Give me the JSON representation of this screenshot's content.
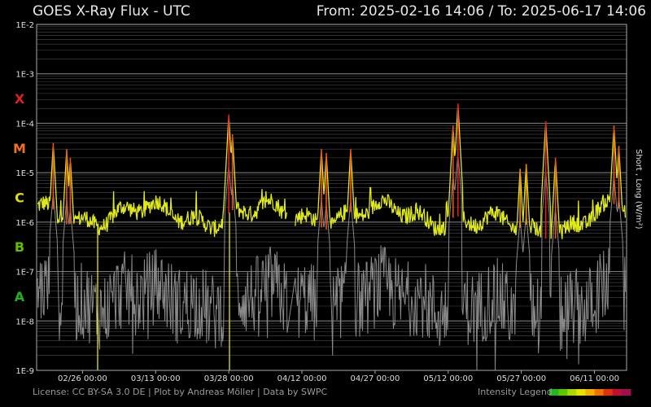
{
  "header": {
    "title": "GOES X-Ray Flux - UTC",
    "range": "From: 2025-02-16 14:06  /  To: 2025-06-17 14:06"
  },
  "chart_data": {
    "type": "line",
    "y_scale": "log",
    "ylim": [
      1e-09,
      0.01
    ],
    "y_ticks": [
      "1E-2",
      "1E-3",
      "1E-4",
      "1E-5",
      "1E-6",
      "1E-7",
      "1E-8",
      "1E-9"
    ],
    "x_range": [
      "2025-02-16 14:06",
      "2025-06-17 14:06"
    ],
    "x_ticks": [
      "02/26 00:00",
      "03/13 00:00",
      "03/28 00:00",
      "04/12 00:00",
      "04/27 00:00",
      "05/12 00:00",
      "05/27 00:00",
      "06/11 00:00"
    ],
    "flare_classes": [
      {
        "label": "X",
        "color": "#e02020"
      },
      {
        "label": "M",
        "color": "#f07020"
      },
      {
        "label": "C",
        "color": "#e0e000"
      },
      {
        "label": "B",
        "color": "#60c000"
      },
      {
        "label": "A",
        "color": "#20b020"
      }
    ],
    "right_axis_label": "Short , Long (W/m²)",
    "grid": true,
    "series": [
      {
        "name": "Long",
        "color": "#dfe81a",
        "gap": [
          "2025-04-09 00:00",
          "2025-04-10 12:00"
        ],
        "peaks": [
          {
            "x": "2025-02-20 00:00",
            "y": 4e-05
          },
          {
            "x": "2025-02-22 18:00",
            "y": 3e-05
          },
          {
            "x": "2025-02-23 12:00",
            "y": 2e-05
          },
          {
            "x": "2025-03-28 00:00",
            "y": 0.00015
          },
          {
            "x": "2025-03-28 18:00",
            "y": 6e-05
          },
          {
            "x": "2025-04-16 00:00",
            "y": 3e-05
          },
          {
            "x": "2025-04-17 00:00",
            "y": 2.5e-05
          },
          {
            "x": "2025-04-22 00:00",
            "y": 3e-05
          },
          {
            "x": "2025-05-14 00:00",
            "y": 0.00025
          },
          {
            "x": "2025-05-13 00:00",
            "y": 9e-05
          },
          {
            "x": "2025-05-26 18:00",
            "y": 1.2e-05
          },
          {
            "x": "2025-05-28 00:00",
            "y": 1.5e-05
          },
          {
            "x": "2025-06-01 00:00",
            "y": 0.00011
          },
          {
            "x": "2025-06-03 00:00",
            "y": 2e-05
          },
          {
            "x": "2025-06-15 00:00",
            "y": 9e-05
          },
          {
            "x": "2025-06-16 00:00",
            "y": 3.5e-05
          }
        ]
      },
      {
        "name": "Short",
        "color": "#8a8a8a"
      }
    ]
  },
  "footer": {
    "license": "License: CC BY-SA 3.0 DE | Plot by Andreas Möller | Data by SWPC",
    "legend_label": "Intensity Legend",
    "legend_colors": [
      "#22b822",
      "#55c800",
      "#a8d800",
      "#e8e000",
      "#f0b000",
      "#f07000",
      "#e03010",
      "#c01030",
      "#a01050"
    ]
  }
}
